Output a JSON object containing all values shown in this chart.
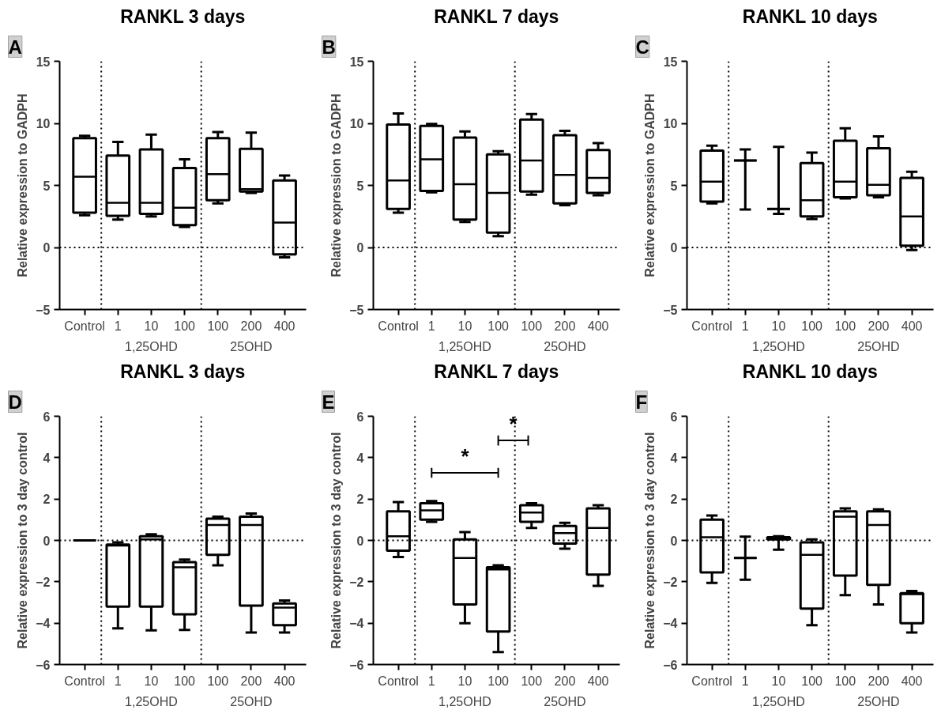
{
  "chart_data": [
    {
      "type": "box",
      "title": "RANKL 3 days",
      "ylabel": "Relative expression to GADPH",
      "categories": [
        "Control",
        "1",
        "10",
        "100",
        "100",
        "200",
        "400"
      ],
      "ylim": [
        -5,
        15
      ],
      "yticks": [
        -5,
        0,
        5,
        10,
        15
      ],
      "ref_lines": [
        {
          "axis": "y",
          "value": 0,
          "line_style": "dotted"
        }
      ],
      "annotations": [
        "A",
        "1,25OHD",
        "25OHD"
      ],
      "boxes": [
        {
          "low": 2.6,
          "q1": 2.8,
          "median": 5.7,
          "q3": 8.8,
          "high": 9.0
        },
        {
          "low": 2.25,
          "q1": 2.55,
          "median": 3.6,
          "q3": 7.4,
          "high": 8.5
        },
        {
          "low": 2.5,
          "q1": 2.7,
          "median": 3.6,
          "q3": 7.9,
          "high": 9.1
        },
        {
          "low": 1.65,
          "q1": 1.8,
          "median": 3.2,
          "q3": 6.4,
          "high": 7.1
        },
        {
          "low": 3.55,
          "q1": 3.8,
          "median": 5.9,
          "q3": 8.8,
          "high": 9.3
        },
        {
          "low": 4.4,
          "q1": 4.5,
          "median": 4.7,
          "q3": 7.95,
          "high": 9.25
        },
        {
          "low": -0.8,
          "q1": -0.55,
          "median": 2.0,
          "q3": 5.4,
          "high": 5.8
        }
      ]
    },
    {
      "type": "box",
      "title": "RANKL 7 days",
      "ylabel": "Relative expression to GADPH",
      "categories": [
        "Control",
        "1",
        "10",
        "100",
        "100",
        "200",
        "400"
      ],
      "ylim": [
        -5,
        15
      ],
      "yticks": [
        -5,
        0,
        5,
        10,
        15
      ],
      "ref_lines": [
        {
          "axis": "y",
          "value": 0,
          "line_style": "dotted"
        }
      ],
      "annotations": [
        "B",
        "1,25OHD",
        "25OHD"
      ],
      "boxes": [
        {
          "low": 2.8,
          "q1": 3.1,
          "median": 5.4,
          "q3": 9.9,
          "high": 10.8
        },
        {
          "low": 4.45,
          "q1": 4.55,
          "median": 7.1,
          "q3": 9.8,
          "high": 9.95
        },
        {
          "low": 2.05,
          "q1": 2.25,
          "median": 5.1,
          "q3": 8.85,
          "high": 9.35
        },
        {
          "low": 0.9,
          "q1": 1.2,
          "median": 4.4,
          "q3": 7.5,
          "high": 7.75
        },
        {
          "low": 4.25,
          "q1": 4.5,
          "median": 7.0,
          "q3": 10.3,
          "high": 10.75
        },
        {
          "low": 3.4,
          "q1": 3.55,
          "median": 5.85,
          "q3": 9.05,
          "high": 9.4
        },
        {
          "low": 4.2,
          "q1": 4.4,
          "median": 5.6,
          "q3": 7.85,
          "high": 8.4
        }
      ]
    },
    {
      "type": "box",
      "title": "RANKL 10 days",
      "ylabel": "Relative expression to GADPH",
      "categories": [
        "Control",
        "1",
        "10",
        "100",
        "100",
        "200",
        "400"
      ],
      "ylim": [
        -5,
        15
      ],
      "yticks": [
        -5,
        0,
        5,
        10,
        15
      ],
      "ref_lines": [
        {
          "axis": "y",
          "value": 0,
          "line_style": "dotted"
        }
      ],
      "annotations": [
        "C",
        "1,25OHD",
        "25OHD"
      ],
      "boxes": [
        {
          "low": 3.55,
          "q1": 3.7,
          "median": 5.3,
          "q3": 7.8,
          "high": 8.2
        },
        {
          "low": 3.05,
          "q1": 7.0,
          "median": 7.0,
          "q3": 7.0,
          "high": 7.9
        },
        {
          "low": 2.7,
          "q1": 3.1,
          "median": 3.1,
          "q3": 3.1,
          "high": 8.1
        },
        {
          "low": 2.3,
          "q1": 2.5,
          "median": 3.8,
          "q3": 6.8,
          "high": 7.65
        },
        {
          "low": 3.95,
          "q1": 4.05,
          "median": 5.3,
          "q3": 8.6,
          "high": 9.6
        },
        {
          "low": 4.05,
          "q1": 4.2,
          "median": 5.05,
          "q3": 8.0,
          "high": 8.95
        },
        {
          "low": -0.2,
          "q1": 0.15,
          "median": 2.5,
          "q3": 5.6,
          "high": 6.1
        }
      ]
    },
    {
      "type": "box",
      "title": "RANKL 3 days",
      "ylabel": "Relative expression to 3 day control",
      "categories": [
        "Control",
        "1",
        "10",
        "100",
        "100",
        "200",
        "400"
      ],
      "ylim": [
        -6,
        6
      ],
      "yticks": [
        -6,
        -4,
        -2,
        0,
        2,
        4,
        6
      ],
      "ref_lines": [
        {
          "axis": "y",
          "value": 0,
          "line_style": "dotted"
        }
      ],
      "annotations": [
        "D",
        "1,25OHD",
        "25OHD"
      ],
      "boxes": [
        {
          "low": 0,
          "q1": 0,
          "median": 0,
          "q3": 0,
          "high": 0
        },
        {
          "low": -4.25,
          "q1": -3.2,
          "median": -0.25,
          "q3": -0.2,
          "high": -0.1
        },
        {
          "low": -4.35,
          "q1": -3.2,
          "median": 0.05,
          "q3": 0.2,
          "high": 0.3
        },
        {
          "low": -4.33,
          "q1": -3.57,
          "median": -1.3,
          "q3": -1.05,
          "high": -0.93
        },
        {
          "low": -1.2,
          "q1": -0.7,
          "median": 0.75,
          "q3": 1.05,
          "high": 1.15
        },
        {
          "low": -4.45,
          "q1": -3.15,
          "median": 0.75,
          "q3": 1.15,
          "high": 1.3
        },
        {
          "low": -4.45,
          "q1": -4.1,
          "median": -3.25,
          "q3": -3.05,
          "high": -2.9
        }
      ]
    },
    {
      "type": "box",
      "title": "RANKL 7 days",
      "ylabel": "Relative expression to 3 day control",
      "categories": [
        "Control",
        "1",
        "10",
        "100",
        "100",
        "200",
        "400"
      ],
      "ylim": [
        -6,
        6
      ],
      "yticks": [
        -6,
        -4,
        -2,
        0,
        2,
        4,
        6
      ],
      "ref_lines": [
        {
          "axis": "y",
          "value": 0,
          "line_style": "dotted"
        }
      ],
      "annotations": [
        "E",
        "1,25OHD",
        "25OHD",
        "*",
        "*"
      ],
      "boxes": [
        {
          "low": -0.8,
          "q1": -0.5,
          "median": 0.2,
          "q3": 1.4,
          "high": 1.85
        },
        {
          "low": 0.9,
          "q1": 1.0,
          "median": 1.45,
          "q3": 1.8,
          "high": 1.9
        },
        {
          "low": -4.0,
          "q1": -3.1,
          "median": -0.85,
          "q3": 0.05,
          "high": 0.4
        },
        {
          "low": -5.4,
          "q1": -4.4,
          "median": -1.4,
          "q3": -1.3,
          "high": -1.2
        },
        {
          "low": 0.6,
          "q1": 0.9,
          "median": 1.35,
          "q3": 1.7,
          "high": 1.8
        },
        {
          "low": -0.4,
          "q1": -0.15,
          "median": 0.35,
          "q3": 0.7,
          "high": 0.85
        },
        {
          "low": -2.2,
          "q1": -1.65,
          "median": 0.6,
          "q3": 1.55,
          "high": 1.7
        }
      ]
    },
    {
      "type": "box",
      "title": "RANKL 10 days",
      "ylabel": "Relative expression to 3 day control",
      "categories": [
        "Control",
        "1",
        "10",
        "100",
        "100",
        "200",
        "400"
      ],
      "ylim": [
        -6,
        6
      ],
      "yticks": [
        -6,
        -4,
        -2,
        0,
        2,
        4,
        6
      ],
      "ref_lines": [
        {
          "axis": "y",
          "value": 0,
          "line_style": "dotted"
        }
      ],
      "annotations": [
        "F",
        "1,25OHD",
        "25OHD"
      ],
      "boxes": [
        {
          "low": -2.05,
          "q1": -1.55,
          "median": 0.15,
          "q3": 1.0,
          "high": 1.2
        },
        {
          "low": -1.9,
          "q1": -0.85,
          "median": -0.85,
          "q3": -0.85,
          "high": 0.18
        },
        {
          "low": -0.45,
          "q1": 0.05,
          "median": 0.1,
          "q3": 0.15,
          "high": 0.2
        },
        {
          "low": -4.1,
          "q1": -3.3,
          "median": -0.7,
          "q3": -0.1,
          "high": 0.05
        },
        {
          "low": -2.65,
          "q1": -1.7,
          "median": 1.15,
          "q3": 1.4,
          "high": 1.55
        },
        {
          "low": -3.1,
          "q1": -2.15,
          "median": 0.75,
          "q3": 1.4,
          "high": 1.5
        },
        {
          "low": -4.45,
          "q1": -4.0,
          "median": -2.6,
          "q3": -2.55,
          "high": -2.45
        }
      ]
    }
  ]
}
